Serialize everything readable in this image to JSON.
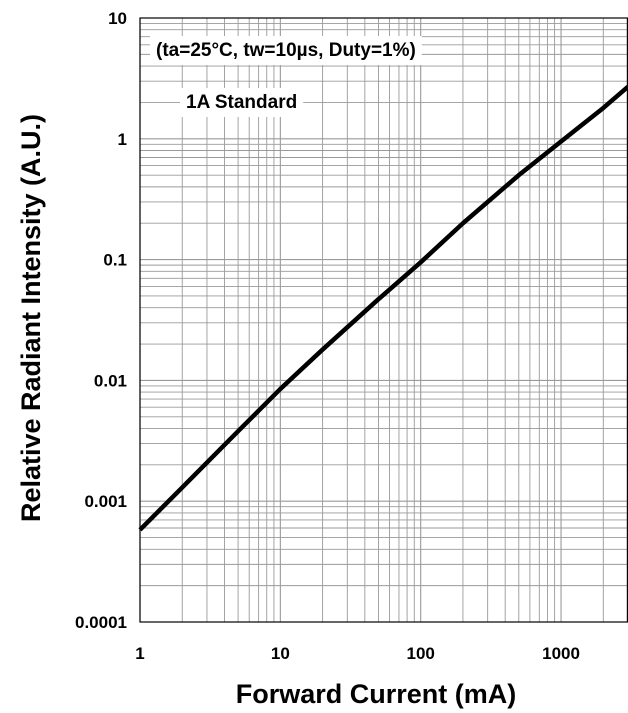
{
  "chart_data": {
    "type": "line",
    "title": "",
    "xlabel": "Forward Current (mA)",
    "ylabel": "Relative Radiant Intensity (A.U.)",
    "xscale": "log",
    "yscale": "log",
    "xlim": [
      1,
      3000
    ],
    "ylim": [
      0.0001,
      10
    ],
    "grid": true,
    "legend": "none",
    "xticks": [
      {
        "value": 1,
        "label": "1"
      },
      {
        "value": 10,
        "label": "10"
      },
      {
        "value": 100,
        "label": "100"
      },
      {
        "value": 1000,
        "label": "1000"
      }
    ],
    "yticks": [
      {
        "value": 10,
        "label": "10"
      },
      {
        "value": 1,
        "label": "1"
      },
      {
        "value": 0.1,
        "label": "0.1"
      },
      {
        "value": 0.01,
        "label": "0.01"
      },
      {
        "value": 0.001,
        "label": "0.001"
      },
      {
        "value": 0.0001,
        "label": "0.0001"
      }
    ],
    "annotations": [
      "(ta=25°C, tw=10µs, Duty=1%)",
      "1A Standard"
    ],
    "series": [
      {
        "x": [
          1,
          2,
          5,
          10,
          20,
          50,
          100,
          200,
          500,
          1000,
          2000,
          3000
        ],
        "y": [
          0.00058,
          0.0013,
          0.0038,
          0.0085,
          0.018,
          0.047,
          0.095,
          0.2,
          0.5,
          0.95,
          1.8,
          2.7
        ]
      }
    ],
    "colors": {
      "line": "#000000",
      "grid": "#9a9a9a",
      "frame": "#000000"
    }
  }
}
